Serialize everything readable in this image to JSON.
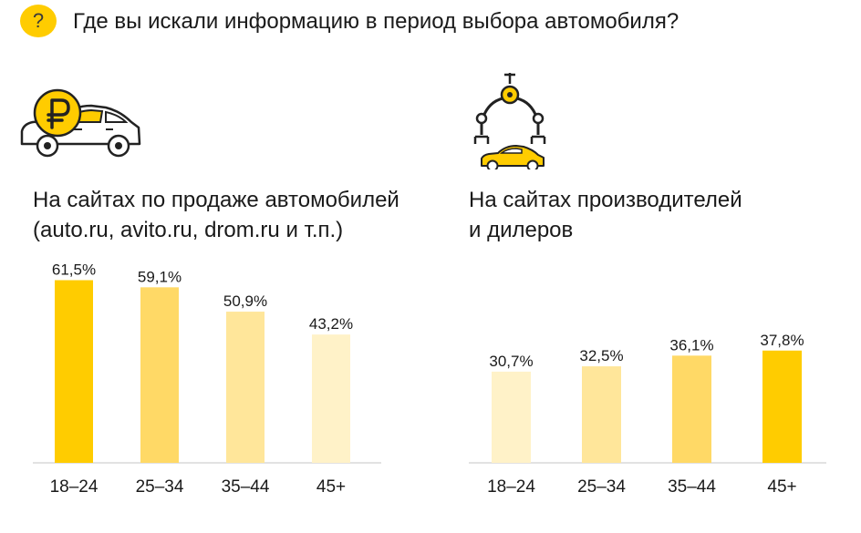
{
  "header": {
    "badge": "?",
    "question": "Где вы искали информацию в период выбора автомобиля?"
  },
  "icons": {
    "left": "car-with-ruble-coin-icon",
    "right": "robot-arm-car-icon"
  },
  "colors": {
    "accent": "#ffcc00",
    "bar_shades": [
      "#ffcc00",
      "#ffd966",
      "#ffe69a",
      "#fff2c8"
    ],
    "axis": "#d9d9d9",
    "icon_stroke": "#222222"
  },
  "chart_data": [
    {
      "type": "bar",
      "title_lines": [
        "На сайтах по продаже автомобилей",
        "(auto.ru, avito.ru, drom.ru и т.п.)"
      ],
      "categories": [
        "18–24",
        "25–34",
        "35–44",
        "45+"
      ],
      "values": [
        61.5,
        59.1,
        50.9,
        43.2
      ],
      "value_labels": [
        "61,5%",
        "59,1%",
        "50,9%",
        "43,2%"
      ],
      "bar_colors": [
        "#ffcc00",
        "#ffd966",
        "#ffe69a",
        "#fff2c8"
      ],
      "ylim": [
        0,
        75
      ],
      "grid": false
    },
    {
      "type": "bar",
      "title_lines": [
        "На сайтах производителей",
        "и дилеров"
      ],
      "categories": [
        "18–24",
        "25–34",
        "35–44",
        "45+"
      ],
      "values": [
        30.7,
        32.5,
        36.1,
        37.8
      ],
      "value_labels": [
        "30,7%",
        "32,5%",
        "36,1%",
        "37,8%"
      ],
      "bar_colors": [
        "#fff2c8",
        "#ffe69a",
        "#ffd966",
        "#ffcc00"
      ],
      "ylim": [
        0,
        75
      ],
      "grid": false
    }
  ]
}
